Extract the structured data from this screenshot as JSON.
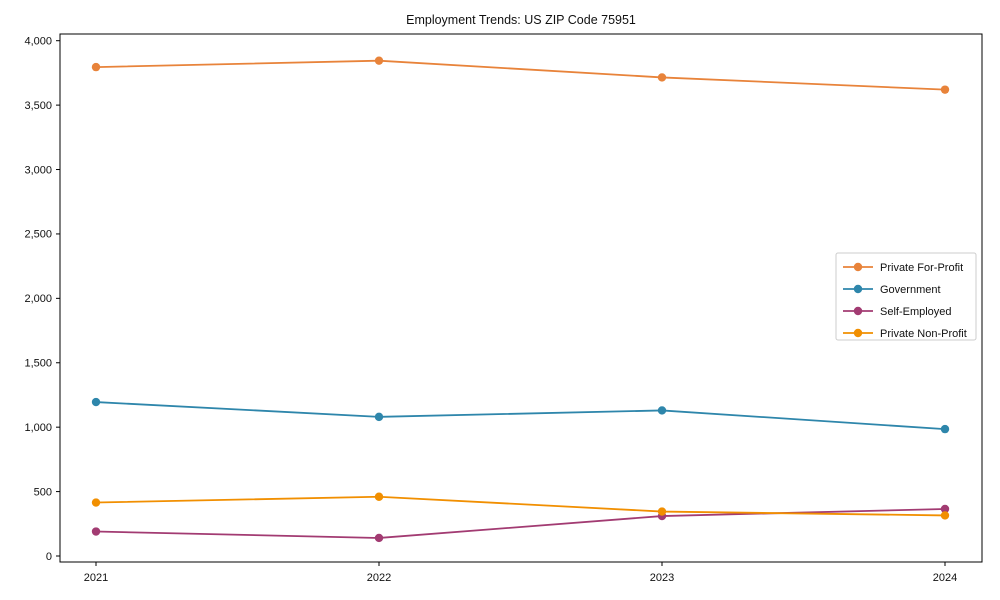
{
  "figure": {
    "title": "Employment Trends: US ZIP Code 75951"
  },
  "chart_data": {
    "type": "line",
    "title": "Employment Trends: US ZIP Code 75951",
    "xlabel": "",
    "ylabel": "",
    "x": [
      2021,
      2022,
      2023,
      2024
    ],
    "x_tick_labels": [
      "2021",
      "2022",
      "2023",
      "2024"
    ],
    "series": [
      {
        "name": "Private For-Profit",
        "color": "#E8833A",
        "values": [
          3795,
          3845,
          3715,
          3620
        ]
      },
      {
        "name": "Government",
        "color": "#2E86AB",
        "values": [
          1195,
          1080,
          1130,
          985
        ]
      },
      {
        "name": "Self-Employed",
        "color": "#A23B72",
        "values": [
          190,
          140,
          310,
          365
        ]
      },
      {
        "name": "Private Non-Profit",
        "color": "#F18F01",
        "values": [
          415,
          460,
          345,
          315
        ]
      }
    ],
    "ylim": [
      -54,
      4054
    ],
    "yticks": [
      0,
      500,
      1000,
      1500,
      2000,
      2500,
      3000,
      3500,
      4000
    ],
    "ytick_labels": [
      "0",
      "500",
      "1,000",
      "1,500",
      "2,000",
      "2,500",
      "3,000",
      "3,500",
      "4,000"
    ],
    "grid": false,
    "marker": "o",
    "legend_position": "center right",
    "axis_color": "#000000",
    "legend_border_color": "#cccccc",
    "legend_bg_color": "#ffffff"
  }
}
